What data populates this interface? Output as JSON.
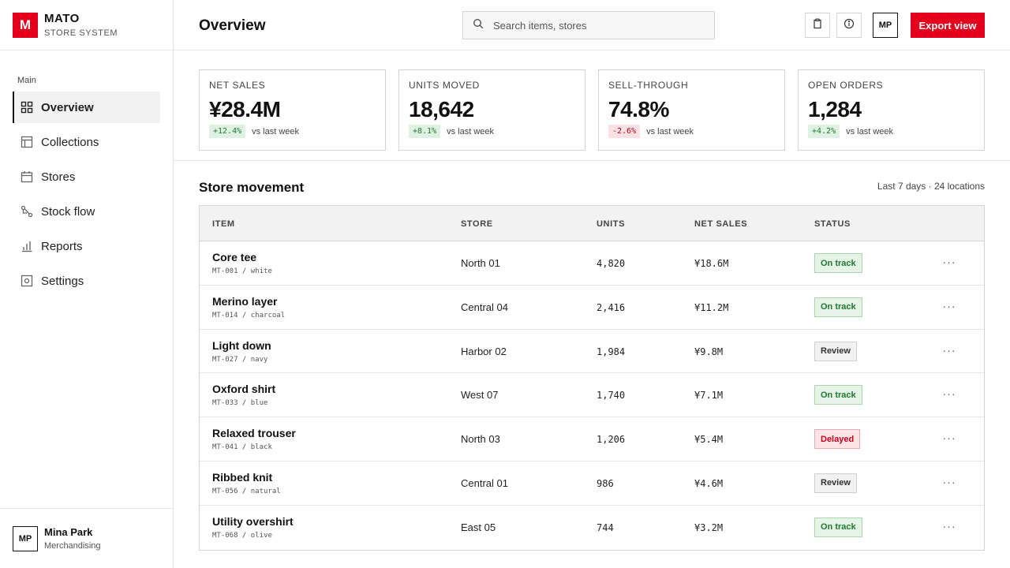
{
  "brand": {
    "logo": "M",
    "name": "MATO",
    "subtitle": "STORE SYSTEM",
    "accent": "#e4001c"
  },
  "sidebar": {
    "section": "Main",
    "items": [
      {
        "label": "Overview",
        "icon": "grid-icon",
        "active": true
      },
      {
        "label": "Collections",
        "icon": "layout-icon"
      },
      {
        "label": "Stores",
        "icon": "calendar-icon"
      },
      {
        "label": "Stock flow",
        "icon": "flow-icon"
      },
      {
        "label": "Reports",
        "icon": "bar-chart-icon"
      },
      {
        "label": "Settings",
        "icon": "settings-icon"
      }
    ],
    "user": {
      "initials": "MP",
      "name": "Mina Park",
      "role": "Merchandising"
    }
  },
  "header": {
    "title": "Overview",
    "search_placeholder": "Search items, stores",
    "avatar": "MP",
    "export_label": "Export view"
  },
  "kpis": [
    {
      "label": "NET SALES",
      "value": "¥28.4M",
      "delta": "+12.4%",
      "trend": "up",
      "note": "vs last week"
    },
    {
      "label": "UNITS MOVED",
      "value": "18,642",
      "delta": "+8.1%",
      "trend": "up",
      "note": "vs last week"
    },
    {
      "label": "SELL-THROUGH",
      "value": "74.8%",
      "delta": "-2.6%",
      "trend": "down",
      "note": "vs last week"
    },
    {
      "label": "OPEN ORDERS",
      "value": "1,284",
      "delta": "+4.2%",
      "trend": "up",
      "note": "vs last week"
    }
  ],
  "movement": {
    "title": "Store movement",
    "meta": "Last 7 days · 24 locations",
    "columns": [
      "ITEM",
      "STORE",
      "UNITS",
      "NET SALES",
      "STATUS"
    ],
    "rows": [
      {
        "name": "Core tee",
        "sku": "MT-001 / white",
        "store": "North 01",
        "units": "4,820",
        "sales": "¥18.6M",
        "status": "On track",
        "kind": "ok"
      },
      {
        "name": "Merino layer",
        "sku": "MT-014 / charcoal",
        "store": "Central 04",
        "units": "2,416",
        "sales": "¥11.2M",
        "status": "On track",
        "kind": "ok"
      },
      {
        "name": "Light down",
        "sku": "MT-027 / navy",
        "store": "Harbor 02",
        "units": "1,984",
        "sales": "¥9.8M",
        "status": "Review",
        "kind": "review"
      },
      {
        "name": "Oxford shirt",
        "sku": "MT-033 / blue",
        "store": "West 07",
        "units": "1,740",
        "sales": "¥7.1M",
        "status": "On track",
        "kind": "ok"
      },
      {
        "name": "Relaxed trouser",
        "sku": "MT-041 / black",
        "store": "North 03",
        "units": "1,206",
        "sales": "¥5.4M",
        "status": "Delayed",
        "kind": "delayed"
      },
      {
        "name": "Ribbed knit",
        "sku": "MT-056 / natural",
        "store": "Central 01",
        "units": "986",
        "sales": "¥4.6M",
        "status": "Review",
        "kind": "review"
      },
      {
        "name": "Utility overshirt",
        "sku": "MT-068 / olive",
        "store": "East 05",
        "units": "744",
        "sales": "¥3.2M",
        "status": "On track",
        "kind": "ok"
      }
    ]
  }
}
